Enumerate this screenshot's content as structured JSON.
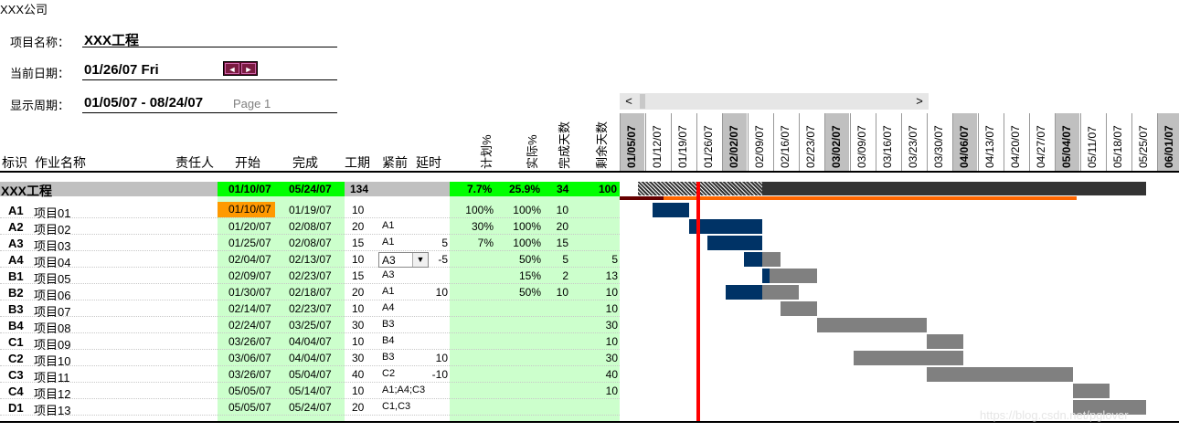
{
  "company": "XXX公司",
  "header": {
    "project_label": "项目名称：",
    "project_name": "XXX工程",
    "date_label": "当前日期：",
    "date_value": "01/26/07 Fri",
    "period_label": "显示周期：",
    "period_value": "01/05/07 - 08/24/07",
    "page_label": "Page 1"
  },
  "nav": {
    "prev": "◄",
    "next": "►"
  },
  "scroll": {
    "left": "<",
    "right": ">"
  },
  "columns": {
    "id": "标识",
    "name": "作业名称",
    "owner": "责任人",
    "start": "开始",
    "end": "完成",
    "duration": "工期",
    "pred": "紧前",
    "lag": "延时",
    "plan_pct": "计划%",
    "actual_pct": "实际%",
    "done_days": "完成天数",
    "remain_days": "剩余天数"
  },
  "dates": [
    {
      "d": "01/05/07",
      "hl": true
    },
    {
      "d": "01/12/07"
    },
    {
      "d": "01/19/07"
    },
    {
      "d": "01/26/07"
    },
    {
      "d": "02/02/07",
      "hl": true
    },
    {
      "d": "02/09/07"
    },
    {
      "d": "02/16/07"
    },
    {
      "d": "02/23/07"
    },
    {
      "d": "03/02/07",
      "hl": true
    },
    {
      "d": "03/09/07"
    },
    {
      "d": "03/16/07"
    },
    {
      "d": "03/23/07"
    },
    {
      "d": "03/30/07"
    },
    {
      "d": "04/06/07",
      "hl": true
    },
    {
      "d": "04/13/07"
    },
    {
      "d": "04/20/07"
    },
    {
      "d": "04/27/07"
    },
    {
      "d": "05/04/07",
      "hl": true
    },
    {
      "d": "05/11/07"
    },
    {
      "d": "05/18/07"
    },
    {
      "d": "05/25/07"
    },
    {
      "d": "06/01/07",
      "hl": true
    }
  ],
  "summary": {
    "name": "XXX工程",
    "start": "01/10/07",
    "end": "05/24/07",
    "duration": "134",
    "plan_pct": "7.7%",
    "actual_pct": "25.9%",
    "done_days": "34",
    "remain_days": "100"
  },
  "tasks": [
    {
      "id": "A1",
      "name": "项目01",
      "start": "01/10/07",
      "end": "01/19/07",
      "dur": "10",
      "pred": "",
      "lag": "",
      "plan": "100%",
      "actual": "100%",
      "done": "10",
      "remain": ""
    },
    {
      "id": "A2",
      "name": "项目02",
      "start": "01/20/07",
      "end": "02/08/07",
      "dur": "20",
      "pred": "A1",
      "lag": "",
      "plan": "30%",
      "actual": "100%",
      "done": "20",
      "remain": ""
    },
    {
      "id": "A3",
      "name": "项目03",
      "start": "01/25/07",
      "end": "02/08/07",
      "dur": "15",
      "pred": "A1",
      "lag": "5",
      "plan": "7%",
      "actual": "100%",
      "done": "15",
      "remain": ""
    },
    {
      "id": "A4",
      "name": "项目04",
      "start": "02/04/07",
      "end": "02/13/07",
      "dur": "10",
      "pred": "A3",
      "lag": "-5",
      "plan": "",
      "actual": "50%",
      "done": "5",
      "remain": "5"
    },
    {
      "id": "B1",
      "name": "项目05",
      "start": "02/09/07",
      "end": "02/23/07",
      "dur": "15",
      "pred": "A3",
      "lag": "",
      "plan": "",
      "actual": "15%",
      "done": "2",
      "remain": "13"
    },
    {
      "id": "B2",
      "name": "项目06",
      "start": "01/30/07",
      "end": "02/18/07",
      "dur": "20",
      "pred": "A1",
      "lag": "10",
      "plan": "",
      "actual": "50%",
      "done": "10",
      "remain": "10"
    },
    {
      "id": "B3",
      "name": "项目07",
      "start": "02/14/07",
      "end": "02/23/07",
      "dur": "10",
      "pred": "A4",
      "lag": "",
      "plan": "",
      "actual": "",
      "done": "",
      "remain": "10"
    },
    {
      "id": "B4",
      "name": "项目08",
      "start": "02/24/07",
      "end": "03/25/07",
      "dur": "30",
      "pred": "B3",
      "lag": "",
      "plan": "",
      "actual": "",
      "done": "",
      "remain": "30"
    },
    {
      "id": "C1",
      "name": "项目09",
      "start": "03/26/07",
      "end": "04/04/07",
      "dur": "10",
      "pred": "B4",
      "lag": "",
      "plan": "",
      "actual": "",
      "done": "",
      "remain": "10"
    },
    {
      "id": "C2",
      "name": "项目10",
      "start": "03/06/07",
      "end": "04/04/07",
      "dur": "30",
      "pred": "B3",
      "lag": "10",
      "plan": "",
      "actual": "",
      "done": "",
      "remain": "30"
    },
    {
      "id": "C3",
      "name": "项目11",
      "start": "03/26/07",
      "end": "05/04/07",
      "dur": "40",
      "pred": "C2",
      "lag": "-10",
      "plan": "",
      "actual": "",
      "done": "",
      "remain": "40"
    },
    {
      "id": "C4",
      "name": "项目12",
      "start": "05/05/07",
      "end": "05/14/07",
      "dur": "10",
      "pred": "A1;A4;C3",
      "lag": "",
      "plan": "",
      "actual": "",
      "done": "",
      "remain": "10"
    },
    {
      "id": "D1",
      "name": "项目13",
      "start": "05/05/07",
      "end": "05/24/07",
      "dur": "20",
      "pred": "C1,C3",
      "lag": "",
      "plan": "",
      "actual": "",
      "done": "",
      "remain": ""
    }
  ],
  "colors": {
    "done": "#003366",
    "remain": "#808080",
    "today": "#ff0000",
    "green": "#ccffcc",
    "bright_green": "#00ff00",
    "progress": "#ff6600",
    "late": "#ff9900"
  },
  "today": "01/26/07",
  "watermark": "https://blog.csdn.net/pglover"
}
